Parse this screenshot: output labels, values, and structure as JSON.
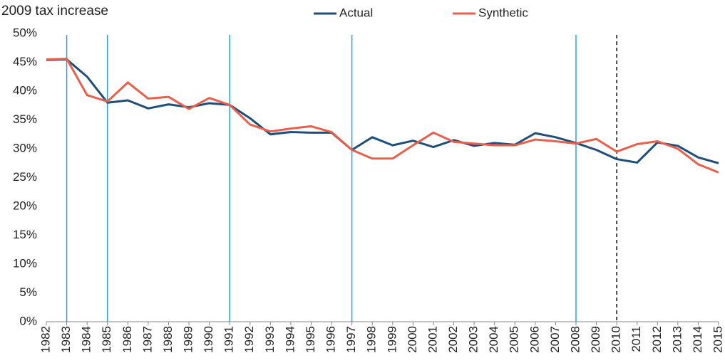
{
  "chart_data": {
    "type": "line",
    "title": "2009 tax increase",
    "x": [
      1982,
      1983,
      1984,
      1985,
      1986,
      1987,
      1988,
      1989,
      1990,
      1991,
      1992,
      1993,
      1994,
      1995,
      1996,
      1997,
      1998,
      1999,
      2000,
      2001,
      2002,
      2003,
      2004,
      2005,
      2006,
      2007,
      2008,
      2009,
      2010,
      2011,
      2012,
      2013,
      2014,
      2015
    ],
    "series": [
      {
        "name": "Actual",
        "color": "#1f4e79",
        "values": [
          45.4,
          45.5,
          42.5,
          38.0,
          38.4,
          37.0,
          37.7,
          37.2,
          37.9,
          37.6,
          35.3,
          32.5,
          32.9,
          32.8,
          32.8,
          29.8,
          32.0,
          30.6,
          31.4,
          30.3,
          31.5,
          30.5,
          31.0,
          30.7,
          32.7,
          32.0,
          31.0,
          29.8,
          28.2,
          27.6,
          31.1,
          30.5,
          28.5,
          27.5
        ]
      },
      {
        "name": "Synthetic",
        "color": "#e8604c",
        "values": [
          45.5,
          45.6,
          39.3,
          38.2,
          41.5,
          38.7,
          39.0,
          36.9,
          38.8,
          37.6,
          34.2,
          33.0,
          33.5,
          33.9,
          32.9,
          29.8,
          28.3,
          28.3,
          30.6,
          32.8,
          31.2,
          30.9,
          30.6,
          30.6,
          31.6,
          31.3,
          30.9,
          31.7,
          29.5,
          30.8,
          31.3,
          30.0,
          27.3,
          25.9
        ]
      }
    ],
    "xlim": [
      1982,
      2015
    ],
    "ylim": [
      0,
      50
    ],
    "yticks": [
      {
        "value": 0,
        "label": "0%"
      },
      {
        "value": 5,
        "label": "5%"
      },
      {
        "value": 10,
        "label": "10%"
      },
      {
        "value": 15,
        "label": "15%"
      },
      {
        "value": 20,
        "label": "20%"
      },
      {
        "value": 25,
        "label": "25%"
      },
      {
        "value": 30,
        "label": "30%"
      },
      {
        "value": 35,
        "label": "35%"
      },
      {
        "value": 40,
        "label": "40%"
      },
      {
        "value": 45,
        "label": "45%"
      },
      {
        "value": 50,
        "label": "50%"
      }
    ],
    "vlines": [
      1983,
      1985,
      1991,
      1997,
      2008
    ],
    "vline_color": "#29a3d6",
    "dashed_vline": 2010,
    "grid": false,
    "legend": "top"
  }
}
